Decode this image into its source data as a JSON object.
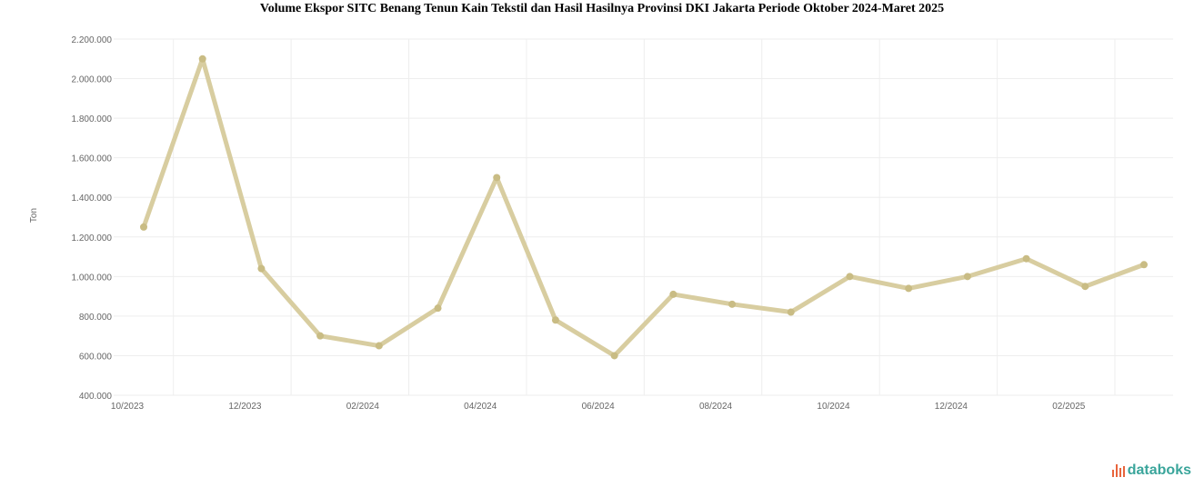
{
  "chart_data": {
    "type": "line",
    "title": "Volume Ekspor SITC Benang Tenun Kain Tekstil dan Hasil Hasilnya Provinsi DKI Jakarta Periode Oktober 2024-Maret 2025",
    "ylabel": "Ton",
    "xlabel": "",
    "ylim": [
      400000,
      2200000
    ],
    "yticks": [
      400000,
      600000,
      800000,
      1000000,
      1200000,
      1400000,
      1600000,
      1800000,
      2000000,
      2200000
    ],
    "ytick_labels": [
      "400.000",
      "600.000",
      "800.000",
      "1.000.000",
      "1.200.000",
      "1.400.000",
      "1.600.000",
      "1.800.000",
      "2.000.000",
      "2.200.000"
    ],
    "x": [
      "10/2023",
      "11/2023",
      "12/2023",
      "01/2024",
      "02/2024",
      "03/2024",
      "04/2024",
      "05/2024",
      "06/2024",
      "07/2024",
      "08/2024",
      "09/2024",
      "10/2024",
      "11/2024",
      "12/2024",
      "01/2025",
      "02/2025",
      "03/2025"
    ],
    "xtick_labels": [
      "10/2023",
      "12/2023",
      "02/2024",
      "04/2024",
      "06/2024",
      "08/2024",
      "10/2024",
      "12/2024",
      "02/2025"
    ],
    "series": [
      {
        "values": [
          1250000,
          2100000,
          1040000,
          700000,
          650000,
          840000,
          1500000,
          780000,
          600000,
          910000,
          860000,
          820000,
          1000000,
          940000,
          1000000,
          1090000,
          950000,
          1060000
        ],
        "color": "#d8cda0"
      }
    ],
    "grid": true
  },
  "brand": {
    "name": "databoks",
    "color": "#3aa59b",
    "accent": "#e8643c"
  }
}
